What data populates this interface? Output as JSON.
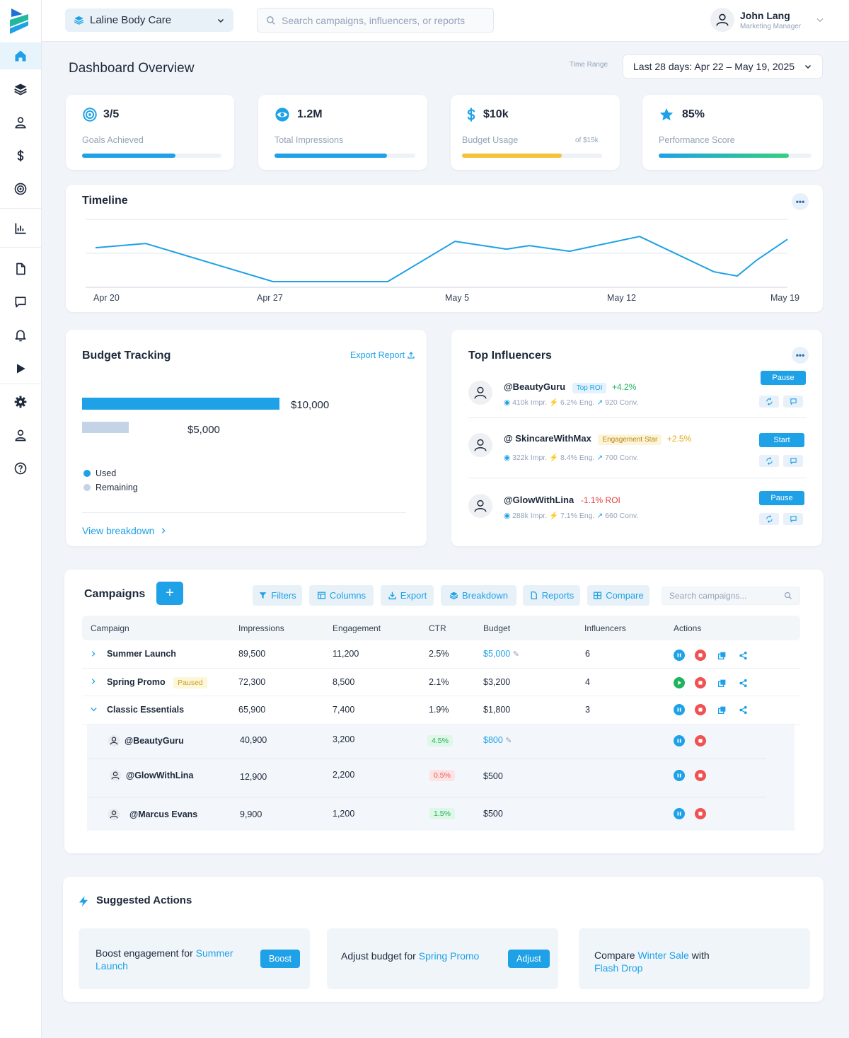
{
  "topbar": {
    "brand": "Laline Body Care",
    "search_placeholder": "Search campaigns, influencers, or reports",
    "user_name": "John Lang",
    "user_role": "Marketing Manager"
  },
  "sidebar": {
    "items": [
      "home-icon",
      "layers-icon",
      "user-icon",
      "dollar-icon",
      "target-icon",
      "chart-icon",
      "file-icon",
      "message-icon",
      "bell-icon",
      "play-icon",
      "gear-icon",
      "profile-icon",
      "help-icon"
    ]
  },
  "header": {
    "title": "Dashboard Overview",
    "time_range_label": "Time Range",
    "time_range_value": "Last 28 days: Apr 22 – May 19, 2025"
  },
  "stats": [
    {
      "value": "3/5",
      "label": "Goals Achieved",
      "progress": 0.67,
      "color": "#1ea1e6"
    },
    {
      "value": "1.2M",
      "label": "Total Impressions",
      "progress": 0.8,
      "color": "#1ea1e6"
    },
    {
      "value": "$10k",
      "label": "Budget Usage",
      "sub": "of $15k",
      "progress": 0.71,
      "color": "#f6c23e"
    },
    {
      "value": "85%",
      "label": "Performance Score",
      "progress": 0.85,
      "color": "#1ea1e6"
    }
  ],
  "timeline": {
    "title": "Timeline",
    "more": "•••",
    "ticks": [
      "Apr 20",
      "Apr 27",
      "May 5",
      "May 12",
      "May 19"
    ]
  },
  "chart_data": {
    "type": "line",
    "title": "Timeline",
    "x": [
      "Apr 20",
      "Apr 22",
      "Apr 27",
      "Apr 28",
      "May 1",
      "May 5",
      "May 7",
      "May 8",
      "May 10",
      "May 13",
      "May 16",
      "May 17",
      "May 18",
      "May 19"
    ],
    "values": [
      60,
      66,
      12,
      12,
      12,
      69,
      58,
      63,
      55,
      76,
      26,
      20,
      42,
      72
    ],
    "ylim": [
      0,
      100
    ],
    "grid": true,
    "xlabel": "",
    "ylabel": ""
  },
  "budget": {
    "title": "Budget Tracking",
    "export": "Export Report",
    "used_value": "$10,000",
    "remaining_value": "$5,000",
    "used_amount": 10000,
    "remaining_amount": 5000,
    "legend_used": "Used",
    "legend_remaining": "Remaining",
    "view_breakdown": "View breakdown",
    "used_color": "#1ea1e6",
    "remaining_color": "#c5d3e6"
  },
  "influencers": {
    "title": "Top Influencers",
    "more": "•••",
    "items": [
      {
        "name": "@BeautyGuru",
        "badge": "Top ROI",
        "delta": "+4.2%",
        "impr": "410k Impr.",
        "eng": "6.2% Eng.",
        "conv": "920 Conv.",
        "action": "Pause"
      },
      {
        "name": "@ SkincareWithMax",
        "badge": "Engagement Star",
        "delta": "+2.5%",
        "impr": "322k Impr.",
        "eng": "8.4% Eng.",
        "conv": "700 Conv.",
        "action": "Start"
      },
      {
        "name": "@GlowWithLina",
        "badge": "",
        "delta": "-1.1% ROI",
        "impr": "288k Impr.",
        "eng": "7.1% Eng.",
        "conv": "660 Conv.",
        "action": "Pause"
      }
    ]
  },
  "campaigns": {
    "title": "Campaigns",
    "add": "+",
    "toolbar": [
      "Filters",
      "Columns",
      "Export",
      "Breakdown",
      "Reports",
      "Compare"
    ],
    "search_placeholder": "Search campaigns...",
    "headers": [
      "Campaign",
      "Impressions",
      "Engagement",
      "CTR",
      "Budget",
      "Influencers",
      "Actions"
    ],
    "rows": [
      {
        "name": "Summer Launch",
        "badge": "",
        "impressions": "89,500",
        "engagement": "11,200",
        "ctr": "2.5%",
        "budget": "$5,000",
        "influencers": "6"
      },
      {
        "name": "Spring Promo",
        "badge": "Paused",
        "impressions": "72,300",
        "engagement": "8,500",
        "ctr": "2.1%",
        "budget": "$3,200",
        "influencers": "4"
      },
      {
        "name": "Classic Essentials",
        "badge": "",
        "impressions": "65,900",
        "engagement": "7,400",
        "ctr": "1.9%",
        "budget": "$1,800",
        "influencers": "3"
      }
    ],
    "subrows": [
      {
        "name": "@BeautyGuru",
        "impressions": "40,900",
        "engagement": "3,200",
        "ctr": "4.5%",
        "budget": "$800"
      },
      {
        "name": "@GlowWithLina",
        "impressions": "12,900",
        "engagement": "2,200",
        "ctr": "0.5%",
        "budget": "$500"
      },
      {
        "name": "@Marcus Evans",
        "impressions": "9,900",
        "engagement": "1,200",
        "ctr": "1.5%",
        "budget": "$500"
      }
    ]
  },
  "suggested": {
    "title": "Suggested Actions",
    "cards": [
      {
        "prefix": "Boost engagement for ",
        "link": "Summer Launch",
        "button": "Boost"
      },
      {
        "prefix": "Adjust budget for ",
        "link": "Spring Promo",
        "button": "Adjust"
      },
      {
        "prefix": "Compare ",
        "link": "Winter Sale",
        "mid": " with",
        "link2": "Flash Drop"
      }
    ]
  }
}
